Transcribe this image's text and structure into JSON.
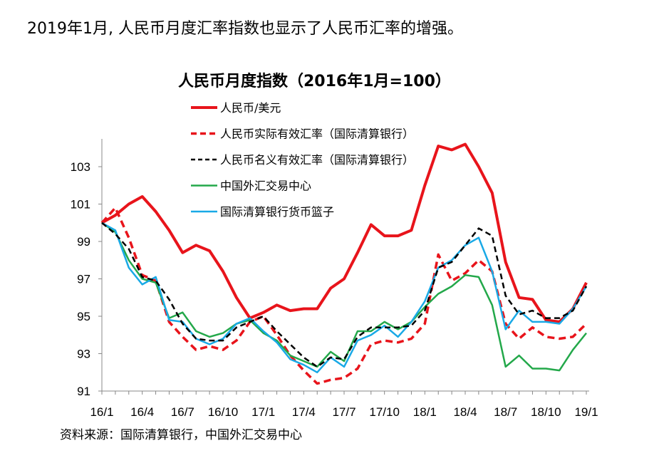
{
  "headline": "2019年1月, 人民币月度汇率指数也显示了人民币汇率的增强。",
  "source": "资料来源：国际清算银行，中国外汇交易中心",
  "chart_data": {
    "type": "line",
    "title": "人民币月度指数（2016年1月=100）",
    "xlabel": "",
    "ylabel": "",
    "ylim": [
      91,
      104.5
    ],
    "yticks": [
      91,
      93,
      95,
      97,
      99,
      101,
      103
    ],
    "categories": [
      "16/1",
      "16/2",
      "16/3",
      "16/4",
      "16/5",
      "16/6",
      "16/7",
      "16/8",
      "16/9",
      "16/10",
      "16/11",
      "16/12",
      "17/1",
      "17/2",
      "17/3",
      "17/4",
      "17/5",
      "17/6",
      "17/7",
      "17/8",
      "17/9",
      "17/10",
      "17/11",
      "17/12",
      "18/1",
      "18/2",
      "18/3",
      "18/4",
      "18/5",
      "18/6",
      "18/7",
      "18/8",
      "18/9",
      "18/10",
      "18/11",
      "18/12",
      "19/1"
    ],
    "xtick_labels": [
      "16/1",
      "16/4",
      "16/7",
      "16/10",
      "17/1",
      "17/4",
      "17/7",
      "17/10",
      "18/1",
      "18/4",
      "18/7",
      "18/10",
      "19/1"
    ],
    "legend_position": "top-left",
    "grid": false,
    "series": [
      {
        "name": "人民币/美元",
        "color": "#e8141b",
        "style": "solid",
        "width": 4,
        "values": [
          100.0,
          100.4,
          101.0,
          101.4,
          100.6,
          99.6,
          98.4,
          98.8,
          98.5,
          97.4,
          96.0,
          94.9,
          95.2,
          95.6,
          95.3,
          95.4,
          95.4,
          96.5,
          97.0,
          98.4,
          99.9,
          99.3,
          99.3,
          99.6,
          102.0,
          104.1,
          103.9,
          104.2,
          103.0,
          101.6,
          97.9,
          96.0,
          95.9,
          94.8,
          94.7,
          95.4,
          96.8
        ]
      },
      {
        "name": "人民币实际有效汇率（国际清算银行）",
        "color": "#e8141b",
        "style": "dashed",
        "width": 3.5,
        "values": [
          100.0,
          100.8,
          99.2,
          97.2,
          96.9,
          94.7,
          93.9,
          93.2,
          93.4,
          93.2,
          93.7,
          94.7,
          95.0,
          94.0,
          92.9,
          92.1,
          91.4,
          91.6,
          91.7,
          92.2,
          93.5,
          93.7,
          93.6,
          93.8,
          94.6,
          98.3,
          96.9,
          97.3,
          98.0,
          97.4,
          94.6,
          93.8,
          94.4,
          93.9,
          93.8,
          93.9,
          94.6
        ]
      },
      {
        "name": "人民币名义有效汇率（国际清算银行）",
        "color": "#000000",
        "style": "dashed",
        "width": 2.5,
        "values": [
          100.0,
          99.4,
          98.6,
          97.1,
          96.9,
          95.9,
          94.6,
          93.8,
          93.7,
          93.7,
          94.4,
          94.7,
          95.0,
          94.2,
          93.5,
          92.8,
          92.3,
          92.8,
          92.7,
          93.9,
          94.4,
          94.4,
          94.4,
          94.5,
          95.3,
          97.6,
          97.9,
          98.8,
          99.7,
          99.3,
          96.1,
          95.1,
          95.3,
          94.9,
          94.9,
          95.3,
          96.6
        ]
      },
      {
        "name": "中国外汇交易中心",
        "color": "#23a84a",
        "style": "solid",
        "width": 2.5,
        "values": [
          100.0,
          99.5,
          98.0,
          97.0,
          96.8,
          94.9,
          95.2,
          94.2,
          93.9,
          94.1,
          94.6,
          94.8,
          94.1,
          93.7,
          92.9,
          92.6,
          92.3,
          93.1,
          92.6,
          94.2,
          94.2,
          94.7,
          94.3,
          94.7,
          95.5,
          96.2,
          96.6,
          97.2,
          97.1,
          95.6,
          92.3,
          92.9,
          92.2,
          92.2,
          92.1,
          93.2,
          94.1
        ]
      },
      {
        "name": "国际清算银行货币篮子",
        "color": "#19a9e6",
        "style": "solid",
        "width": 2.5,
        "values": [
          100.0,
          99.6,
          97.6,
          96.7,
          97.1,
          94.8,
          94.7,
          93.8,
          93.5,
          93.8,
          94.6,
          94.9,
          94.2,
          93.6,
          92.7,
          92.4,
          92.0,
          92.8,
          92.3,
          93.7,
          94.0,
          94.5,
          93.9,
          94.7,
          95.8,
          97.6,
          98.0,
          98.8,
          99.2,
          97.4,
          94.3,
          95.3,
          94.7,
          94.7,
          94.6,
          95.4,
          96.6
        ]
      }
    ]
  }
}
